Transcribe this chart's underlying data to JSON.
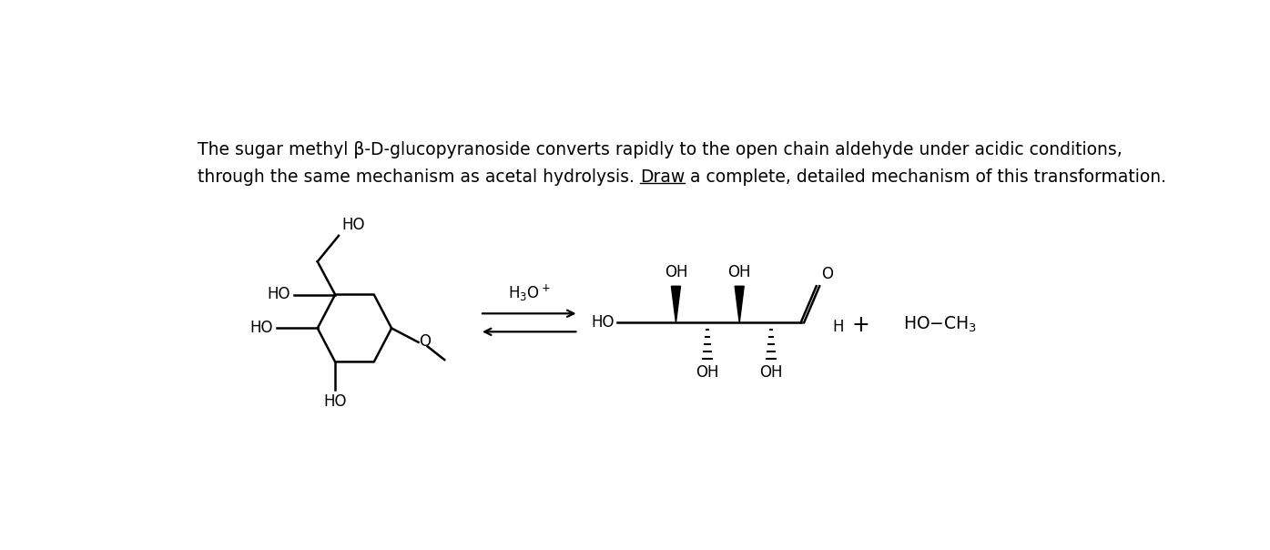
{
  "background_color": "#ffffff",
  "text_line1": "The sugar methyl β-D-glucopyranoside converts rapidly to the open chain aldehyde under acidic conditions,",
  "text_line2_prefix": "through the same mechanism as acetal hydrolysis. ",
  "text_line2_draw": "Draw",
  "text_line2_suffix": " a complete, detailed mechanism of this transformation.",
  "text_fontsize": 13.5,
  "fig_width": 13.95,
  "fig_height": 6.04
}
